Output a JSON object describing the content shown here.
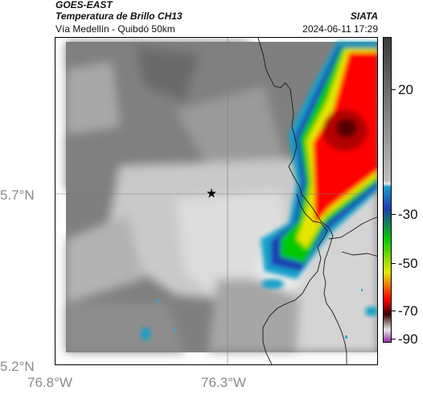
{
  "header": {
    "title": "GOES-EAST",
    "subtitle": "Temperatura de Brillo CH13",
    "agency": "SIATA",
    "location": "Vía Medellín - Quibdó 50km",
    "timestamp": "2024-06-11 17:29"
  },
  "axes": {
    "lat_labels": [
      "5.7°N",
      "5.2°N"
    ],
    "lon_labels": [
      "76.8°W",
      "76.3°W"
    ]
  },
  "colorbar": {
    "ticks": [
      "20",
      "-30",
      "-50",
      "-70",
      "-90"
    ],
    "stops": [
      "#3b3b3b",
      "#bfbfbf",
      "#e6e6e6",
      "#14a0c8",
      "#1e3cb4",
      "#00c800",
      "#e6e600",
      "#ff0000",
      "#3a0000",
      "#e6e6e6",
      "#9b30a8"
    ]
  },
  "markers": {
    "star": "star-icon"
  }
}
